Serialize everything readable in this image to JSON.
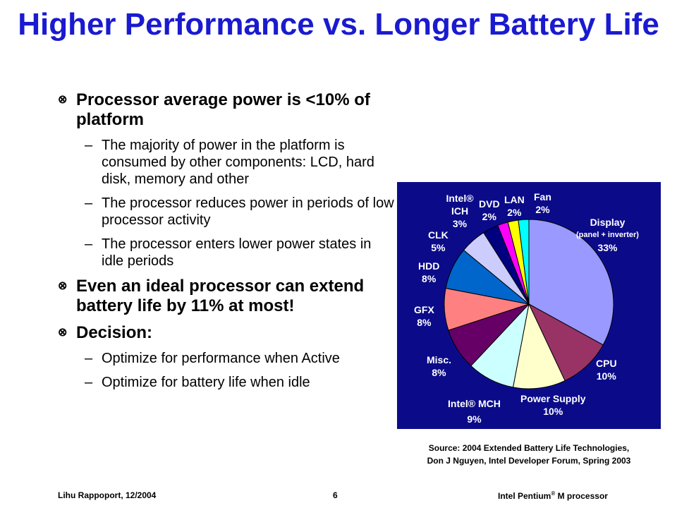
{
  "title": "Higher Performance vs. Longer Battery Life",
  "bullets": [
    {
      "text": "Processor average power is <10% of platform",
      "subs": [
        "The  majority of power in the platform is consumed by other components: LCD, hard disk, memory and other",
        "The processor reduces power in periods of low processor activity",
        "The processor enters lower power states in idle periods"
      ]
    },
    {
      "text": "Even an ideal processor can extend battery life by 11% at most!",
      "subs": []
    },
    {
      "text": "Decision:",
      "subs": [
        "Optimize for performance when Active",
        "Optimize for battery life when idle"
      ]
    }
  ],
  "chart_data": {
    "type": "pie",
    "slices": [
      {
        "label": "Display",
        "sublabel": "(panel + inverter)",
        "value": 33,
        "value_label": "33%",
        "color": "#9999ff"
      },
      {
        "label": "CPU",
        "value": 10,
        "value_label": "10%",
        "color": "#993366"
      },
      {
        "label": "Power Supply",
        "value": 10,
        "value_label": "10%",
        "color": "#ffffcc"
      },
      {
        "label": "Intel® MCH",
        "value": 9,
        "value_label": "9%",
        "color": "#ccffff"
      },
      {
        "label": "Misc.",
        "value": 8,
        "value_label": "8%",
        "color": "#660066"
      },
      {
        "label": "GFX",
        "value": 8,
        "value_label": "8%",
        "color": "#ff8080"
      },
      {
        "label": "HDD",
        "value": 8,
        "value_label": "8%",
        "color": "#0066cc"
      },
      {
        "label": "CLK",
        "value": 5,
        "value_label": "5%",
        "color": "#ccccff"
      },
      {
        "label": "Intel® ICH",
        "value": 3,
        "value_label": "3%",
        "color": "#000080"
      },
      {
        "label": "DVD",
        "value": 2,
        "value_label": "2%",
        "color": "#ff00ff"
      },
      {
        "label": "LAN",
        "value": 2,
        "value_label": "2%",
        "color": "#ffff00"
      },
      {
        "label": "Fan",
        "value": 2,
        "value_label": "2%",
        "color": "#00ffff"
      }
    ],
    "background": "#0b0b8a"
  },
  "source": {
    "line1": "Source: 2004 Extended Battery Life Technologies,",
    "line2": "Don J Nguyen, Intel Developer Forum, Spring 2003"
  },
  "footer": {
    "author": "Lihu Rappoport,  12/2004",
    "page": "6",
    "product_prefix": "Intel Pentium",
    "product_reg": "®",
    "product_suffix": " M processor"
  }
}
